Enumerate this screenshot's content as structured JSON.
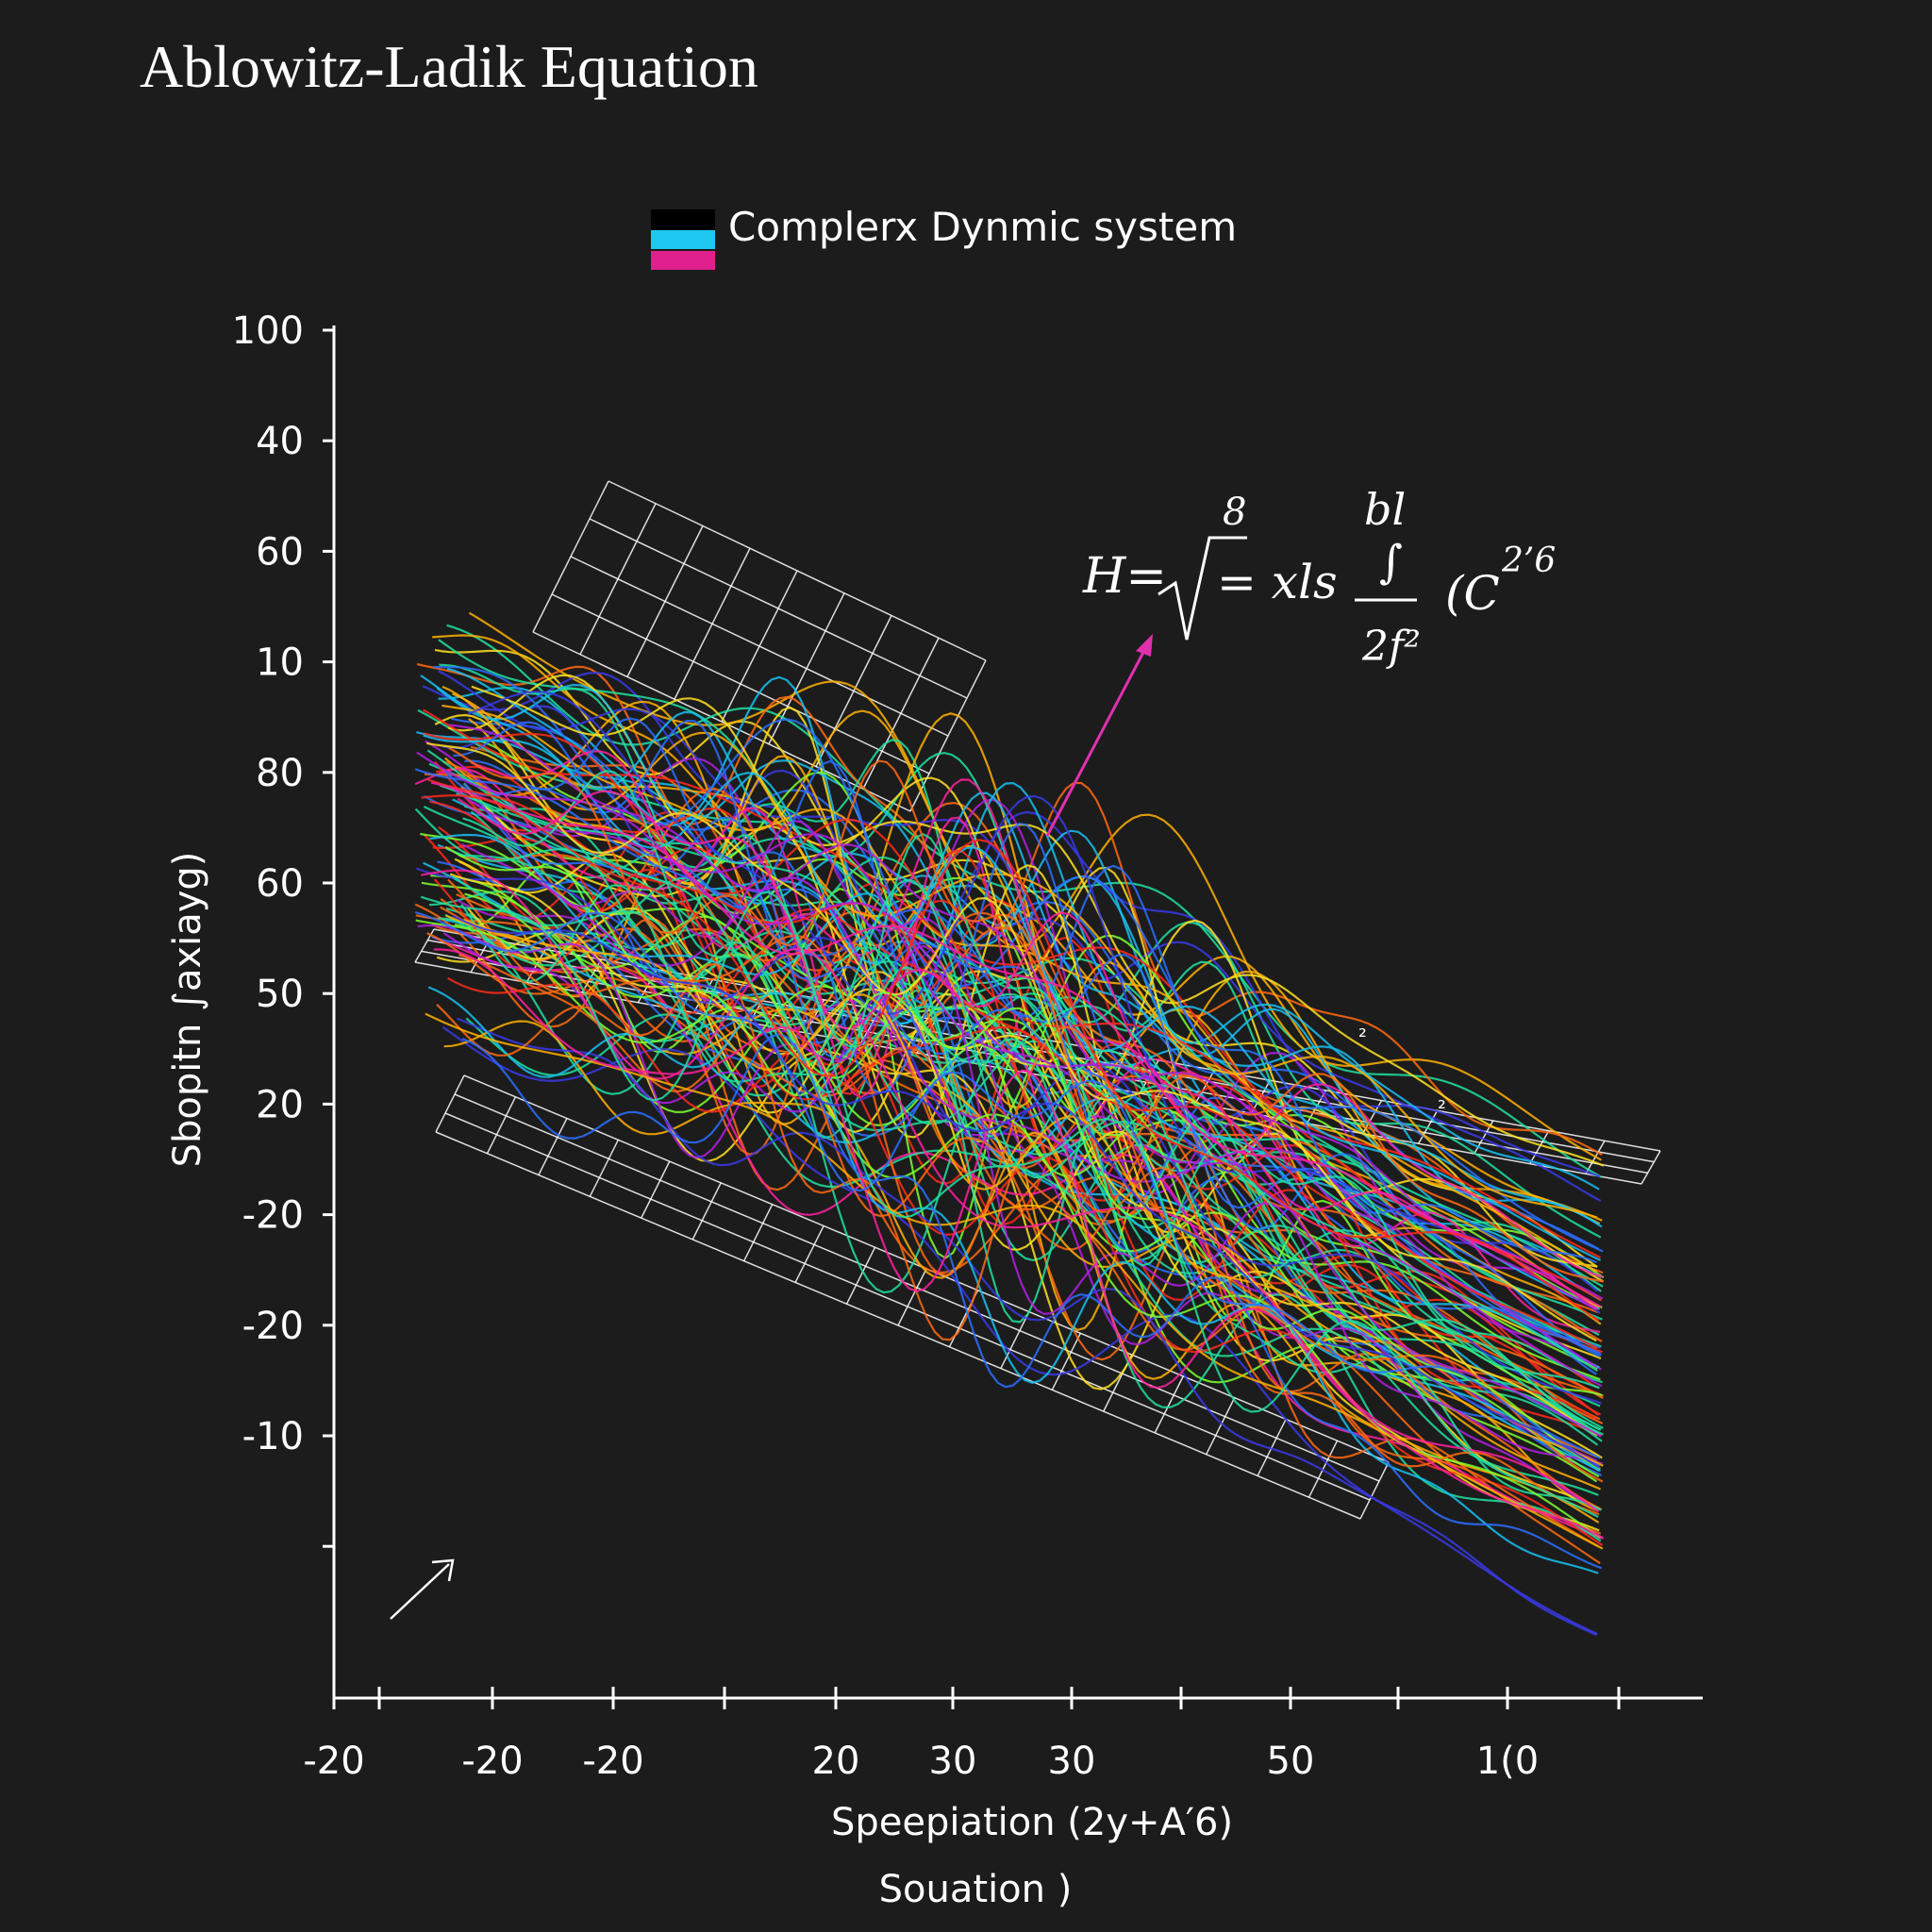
{
  "chart_data": {
    "type": "line",
    "title": "Ablowitz-Ladik Equation",
    "legend": {
      "label": "Complerx Dynmic system",
      "swatch_colors": [
        "#000000",
        "#1ec8f0",
        "#e0208c"
      ],
      "placement": "top-center"
    },
    "ylabel": "Sbopitn ∫axiayg)",
    "xlabel_line1": "Speepiation (2y+A′6)",
    "xlabel_line2": "Souation )",
    "y_ticks": [
      "100",
      "40",
      "60",
      "10",
      "80",
      "60",
      "50",
      "20",
      "-20",
      "-20",
      "-10",
      ""
    ],
    "x_ticks": [
      "-20",
      "",
      "-20",
      "-20",
      "",
      "20",
      "30",
      "30",
      "",
      "50",
      "",
      "1(0",
      ""
    ],
    "equation": {
      "lhs": "H=",
      "root_index": "8",
      "middle": "= xls",
      "frac_num": "bl",
      "frac_mid": "∫",
      "frac_den": "2f²",
      "tail": "(C",
      "tail_sup": "2’6"
    },
    "annotations": {
      "small_marks": [
        "²",
        "²"
      ]
    },
    "series_colors": [
      "#ff2a1a",
      "#ff6a10",
      "#ffb000",
      "#ffe020",
      "#7cff30",
      "#20e0a0",
      "#18c0f0",
      "#2a70ff",
      "#3a3ae8",
      "#b020e0",
      "#ff20a0"
    ],
    "grid": true
  }
}
